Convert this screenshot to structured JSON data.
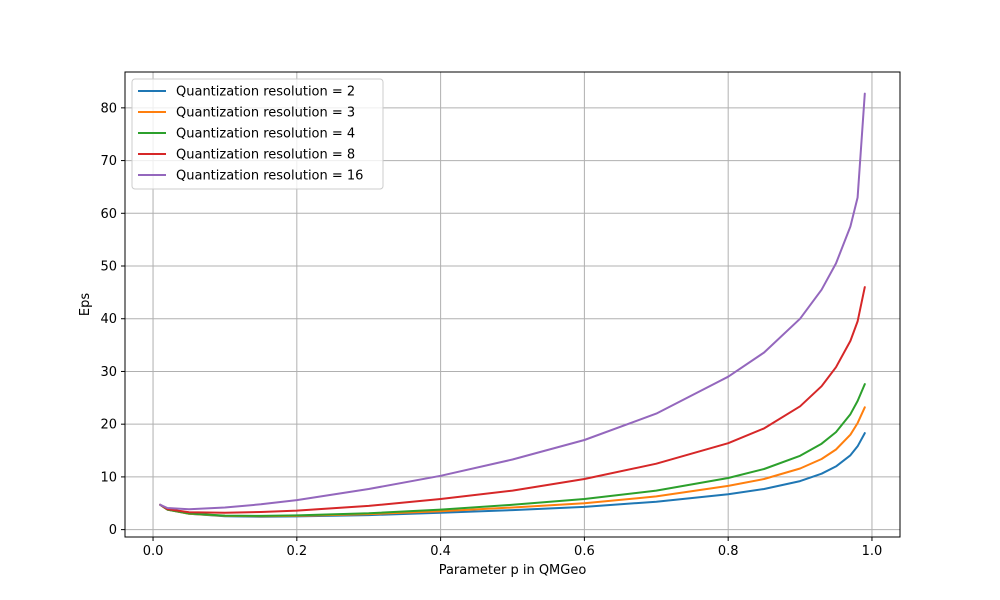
{
  "chart_data": {
    "type": "line",
    "title": "",
    "xlabel": "Parameter p in QMGeo",
    "ylabel": "Eps",
    "xlim": [
      -0.039,
      1.039
    ],
    "ylim": [
      -1.4,
      86.8
    ],
    "xticks": [
      0.0,
      0.2,
      0.4,
      0.6,
      0.8,
      1.0
    ],
    "xtick_labels": [
      "0.0",
      "0.2",
      "0.4",
      "0.6",
      "0.8",
      "1.0"
    ],
    "yticks": [
      0,
      10,
      20,
      30,
      40,
      50,
      60,
      70,
      80
    ],
    "ytick_labels": [
      "0",
      "10",
      "20",
      "30",
      "40",
      "50",
      "60",
      "70",
      "80"
    ],
    "grid": true,
    "legend_position": "upper-left",
    "x": [
      0.01,
      0.02,
      0.05,
      0.1,
      0.15,
      0.2,
      0.3,
      0.4,
      0.5,
      0.6,
      0.7,
      0.8,
      0.85,
      0.9,
      0.93,
      0.95,
      0.97,
      0.98,
      0.99
    ],
    "series": [
      {
        "name": "Quantization resolution = 2",
        "color": "#1f77b4",
        "values": [
          4.7,
          3.8,
          3.0,
          2.55,
          2.45,
          2.5,
          2.75,
          3.2,
          3.7,
          4.3,
          5.3,
          6.7,
          7.7,
          9.2,
          10.6,
          12.0,
          14.1,
          15.8,
          18.3
        ]
      },
      {
        "name": "Quantization resolution = 3",
        "color": "#ff7f0e",
        "values": [
          4.7,
          3.8,
          3.0,
          2.6,
          2.55,
          2.6,
          2.95,
          3.5,
          4.2,
          5.0,
          6.3,
          8.3,
          9.6,
          11.6,
          13.4,
          15.2,
          18.0,
          20.2,
          23.2
        ]
      },
      {
        "name": "Quantization resolution = 4",
        "color": "#2ca02c",
        "values": [
          4.7,
          3.8,
          3.05,
          2.65,
          2.6,
          2.7,
          3.1,
          3.8,
          4.7,
          5.8,
          7.4,
          9.8,
          11.5,
          14.0,
          16.3,
          18.5,
          21.9,
          24.4,
          27.6
        ]
      },
      {
        "name": "Quantization resolution = 8",
        "color": "#d62728",
        "values": [
          4.7,
          3.9,
          3.3,
          3.2,
          3.35,
          3.6,
          4.5,
          5.8,
          7.4,
          9.6,
          12.5,
          16.4,
          19.2,
          23.4,
          27.2,
          30.8,
          35.8,
          39.5,
          46.0
        ]
      },
      {
        "name": "Quantization resolution = 16",
        "color": "#9467bd",
        "values": [
          4.7,
          4.1,
          3.85,
          4.2,
          4.8,
          5.6,
          7.7,
          10.2,
          13.3,
          17.0,
          22.0,
          29.0,
          33.6,
          40.0,
          45.5,
          50.5,
          57.5,
          63.0,
          82.7
        ]
      }
    ]
  }
}
